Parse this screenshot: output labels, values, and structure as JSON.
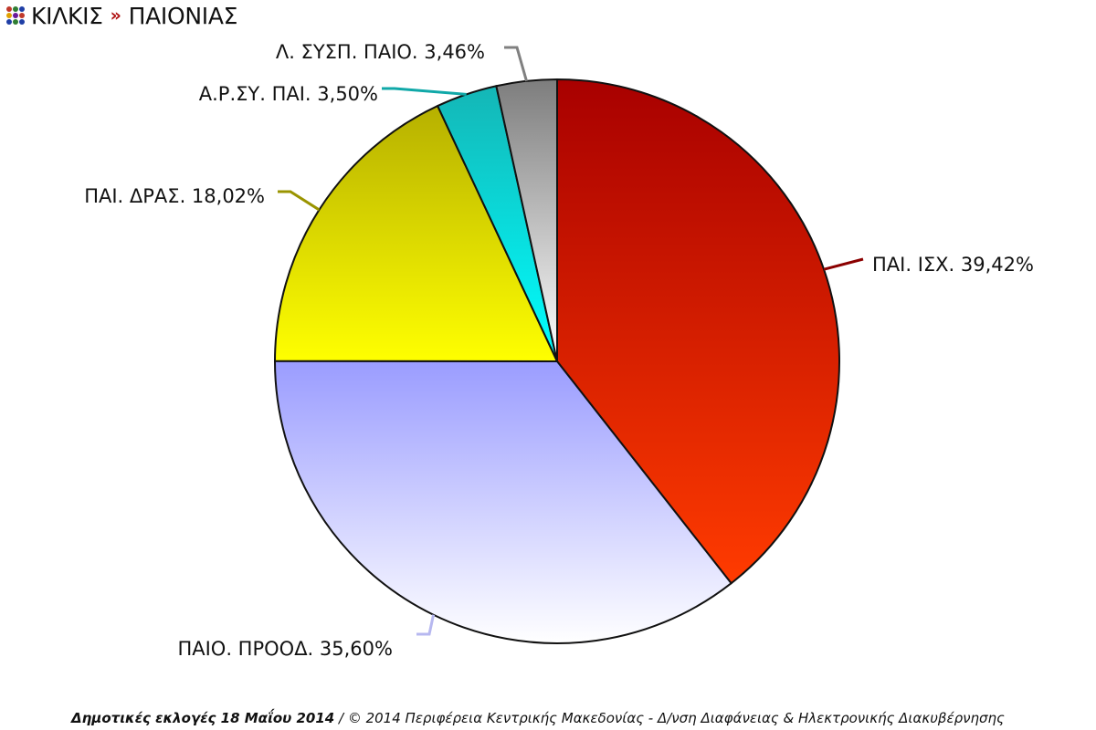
{
  "header": {
    "crumbs": [
      "ΚΙΛΚΙΣ",
      "ΠΑΙΟΝΙΑΣ"
    ],
    "separator": "»",
    "logo_icon": "dot-grid-icon",
    "logo_colors": [
      "#c0392b",
      "#2e7d32",
      "#1f3fa6",
      "#e0a000",
      "#6a1b9a",
      "#c0392b",
      "#1f3fa6",
      "#2e7d32",
      "#1f3fa6"
    ]
  },
  "chart_data": {
    "type": "pie",
    "slices": [
      {
        "label": "ΠΑΙ. ΙΣΧ. 39,42%",
        "value": 39.42,
        "color_top": "#a80000",
        "color_bottom": "#ff3b00",
        "line": "#8b0000"
      },
      {
        "label": "ΠΑΙΟ. ΠΡΟΟΔ. 35,60%",
        "value": 35.6,
        "color_top": "#9a9cff",
        "color_bottom": "#ffffff",
        "line": "#b7b8f0"
      },
      {
        "label": "ΠΑΙ. ΔΡΑΣ. 18,02%",
        "value": 18.02,
        "color_top": "#b6b000",
        "color_bottom": "#ffff00",
        "line": "#9a9400"
      },
      {
        "label": "Α.Ρ.ΣΥ. ΠΑΙ. 3,50%",
        "value": 3.5,
        "color_top": "#14b6b6",
        "color_bottom": "#00ffff",
        "line": "#10a8a8"
      },
      {
        "label": "Λ. ΣΥΣΠ. ΠΑΙΟ. 3,46%",
        "value": 3.46,
        "color_top": "#7d7d7d",
        "color_bottom": "#ffffff",
        "line": "#808080"
      }
    ],
    "start": "12 o'clock",
    "direction": "clockwise"
  },
  "footer": {
    "bold_text": "Δημοτικές εκλογές 18 Μαΐου 2014",
    "rest_text": " / © 2014 Περιφέρεια Κεντρικής Μακεδονίας - Δ/νση Διαφάνειας & Ηλεκτρονικής Διακυβέρνησης"
  }
}
